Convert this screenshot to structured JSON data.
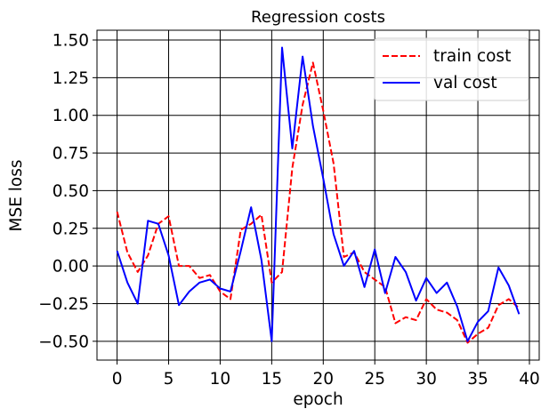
{
  "chart_data": {
    "type": "line",
    "title": "Regression costs",
    "xlabel": "epoch",
    "ylabel": "MSE loss",
    "xlim": [
      -1.95,
      40.95
    ],
    "ylim": [
      -0.625,
      1.565
    ],
    "xticks": [
      0,
      5,
      10,
      15,
      20,
      25,
      30,
      35,
      40
    ],
    "yticks": [
      -0.5,
      -0.25,
      0.0,
      0.25,
      0.5,
      0.75,
      1.0,
      1.25,
      1.5
    ],
    "xtick_labels": [
      "0",
      "5",
      "10",
      "15",
      "20",
      "25",
      "30",
      "35",
      "40"
    ],
    "ytick_labels": [
      "−0.50",
      "−0.25",
      "0.00",
      "0.25",
      "0.50",
      "0.75",
      "1.00",
      "1.25",
      "1.50"
    ],
    "grid": true,
    "legend": "top-right",
    "x": [
      0,
      1,
      2,
      3,
      4,
      5,
      6,
      7,
      8,
      9,
      10,
      11,
      12,
      13,
      14,
      15,
      16,
      17,
      18,
      19,
      20,
      21,
      22,
      23,
      24,
      25,
      26,
      27,
      28,
      29,
      30,
      31,
      32,
      33,
      34,
      35,
      36,
      37,
      38,
      39
    ],
    "series": [
      {
        "name": "train cost",
        "color": "#ff0000",
        "style": "dashed",
        "values": [
          0.36,
          0.09,
          -0.04,
          0.07,
          0.28,
          0.33,
          0.0,
          0.0,
          -0.08,
          -0.06,
          -0.17,
          -0.22,
          0.24,
          0.28,
          0.34,
          -0.11,
          -0.04,
          0.65,
          1.07,
          1.35,
          1.03,
          0.68,
          0.06,
          0.09,
          -0.04,
          -0.09,
          -0.14,
          -0.38,
          -0.34,
          -0.36,
          -0.22,
          -0.29,
          -0.31,
          -0.36,
          -0.51,
          -0.45,
          -0.41,
          -0.26,
          -0.22,
          -0.28
        ]
      },
      {
        "name": "val cost",
        "color": "#0000ff",
        "style": "solid",
        "values": [
          0.1,
          -0.11,
          -0.25,
          0.3,
          0.28,
          0.07,
          -0.26,
          -0.17,
          -0.11,
          -0.09,
          -0.15,
          -0.17,
          0.1,
          0.39,
          0.04,
          -0.5,
          1.45,
          0.78,
          1.39,
          0.93,
          0.58,
          0.21,
          0.0,
          0.1,
          -0.14,
          0.11,
          -0.18,
          0.06,
          -0.04,
          -0.23,
          -0.08,
          -0.18,
          -0.11,
          -0.27,
          -0.5,
          -0.37,
          -0.3,
          -0.01,
          -0.13,
          -0.32
        ]
      }
    ]
  }
}
